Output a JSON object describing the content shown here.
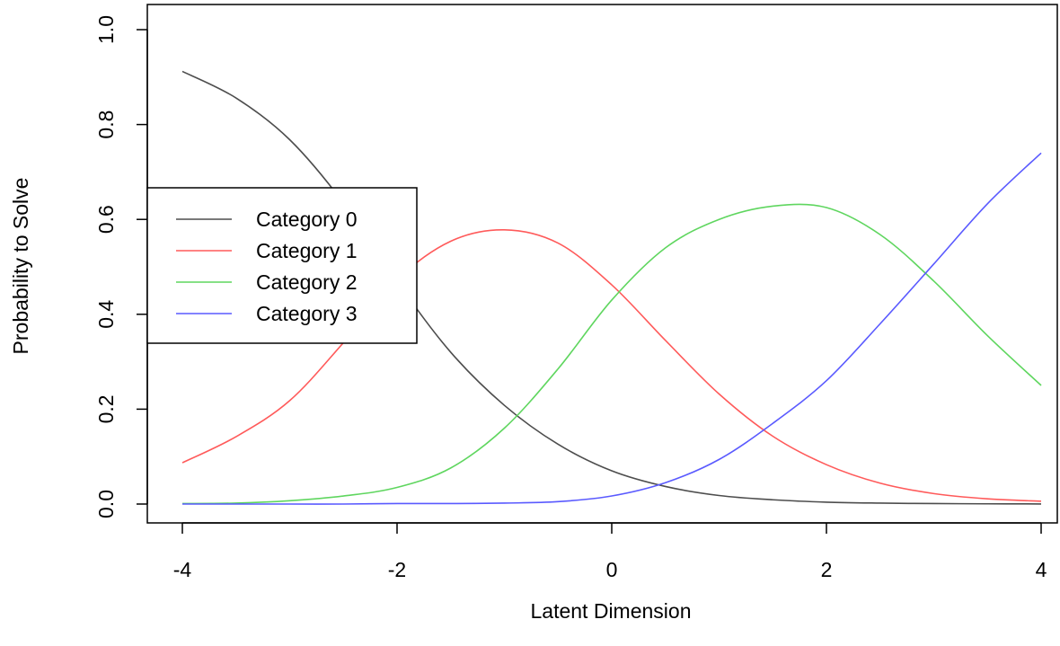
{
  "chart_data": {
    "type": "line",
    "title": "",
    "xlabel": "Latent Dimension",
    "ylabel": "Probability to Solve",
    "xlim": [
      -4,
      4
    ],
    "ylim": [
      0,
      1
    ],
    "xticks": [
      "-4",
      "-2",
      "0",
      "2",
      "4"
    ],
    "yticks": [
      "0.0",
      "0.2",
      "0.4",
      "0.6",
      "0.8",
      "1.0"
    ],
    "legend_position": "middle-left",
    "grid": false,
    "x": [
      -4,
      -3.5,
      -3,
      -2.5,
      -2,
      -1.5,
      -1,
      -0.5,
      0,
      0.5,
      1,
      1.5,
      2,
      2.5,
      3,
      3.5,
      4
    ],
    "series": [
      {
        "name": "Category 0",
        "color": "#000000",
        "values": [
          0.912,
          0.856,
          0.768,
          0.635,
          0.469,
          0.32,
          0.208,
          0.126,
          0.07,
          0.037,
          0.018,
          0.009,
          0.004,
          0.002,
          0.001,
          0.0005,
          0.0002
        ]
      },
      {
        "name": "Category 1",
        "color": "#ff0000",
        "values": [
          0.087,
          0.142,
          0.218,
          0.34,
          0.473,
          0.554,
          0.578,
          0.55,
          0.462,
          0.345,
          0.232,
          0.143,
          0.083,
          0.044,
          0.022,
          0.011,
          0.006
        ]
      },
      {
        "name": "Category 2",
        "color": "#00cc00",
        "values": [
          0.001,
          0.002,
          0.007,
          0.017,
          0.035,
          0.076,
          0.16,
          0.285,
          0.43,
          0.54,
          0.6,
          0.628,
          0.625,
          0.568,
          0.47,
          0.355,
          0.25
        ]
      },
      {
        "name": "Category 3",
        "color": "#0000ff",
        "values": [
          0.0,
          0.0,
          0.0,
          0.0,
          0.001,
          0.001,
          0.002,
          0.005,
          0.017,
          0.045,
          0.094,
          0.17,
          0.26,
          0.38,
          0.506,
          0.633,
          0.74
        ]
      }
    ]
  }
}
